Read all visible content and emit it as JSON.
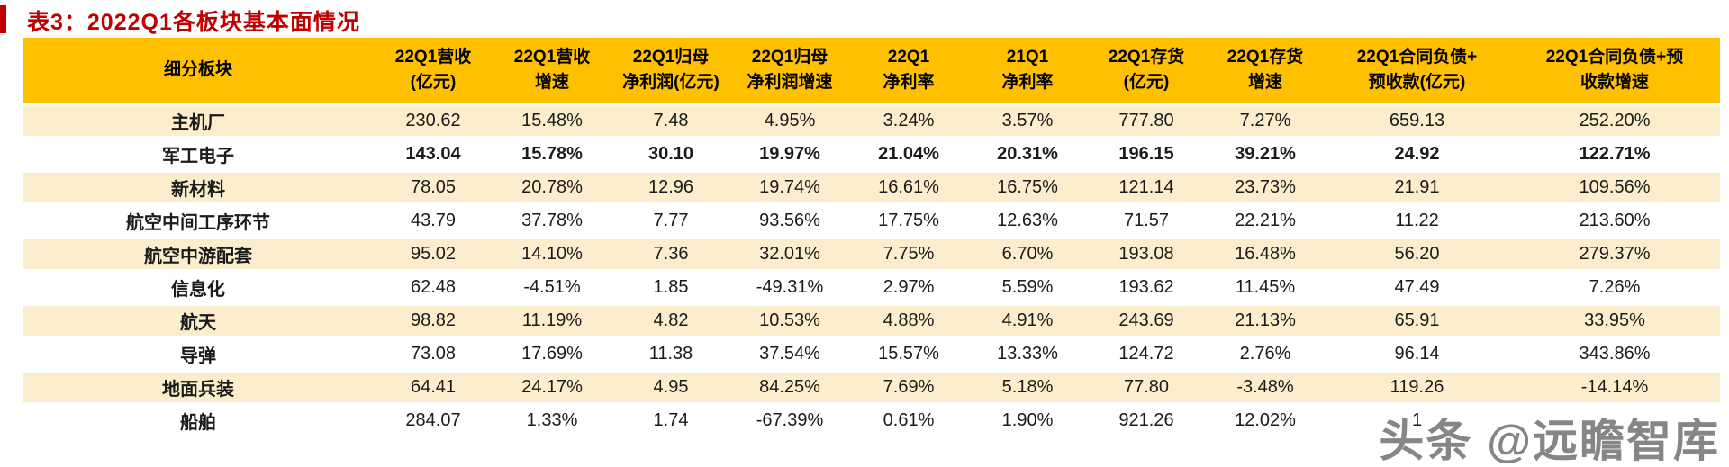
{
  "colors": {
    "title_red": "#C00000",
    "header_bg": "#FFC000",
    "stripe_bg": "#FCEDCC",
    "watermark_gray": "#868686"
  },
  "watermark": {
    "text": "头条 @远瞻智库"
  },
  "chart_data": {
    "type": "table",
    "title": "表3：2022Q1各板块基本面情况",
    "columns": [
      "细分板块",
      "22Q1营收(亿元)",
      "22Q1营收增速",
      "22Q1归母净利润(亿元)",
      "22Q1归母净利润增速",
      "22Q1净利率",
      "21Q1净利率",
      "22Q1存货(亿元)",
      "22Q1存货增速",
      "22Q1合同负债+预收款(亿元)",
      "22Q1合同负债+预收款增速"
    ],
    "column_lines": [
      [
        "细分板块"
      ],
      [
        "22Q1营收",
        "(亿元)"
      ],
      [
        "22Q1营收",
        "增速"
      ],
      [
        "22Q1归母",
        "净利润(亿元)"
      ],
      [
        "22Q1归母",
        "净利润增速"
      ],
      [
        "22Q1",
        "净利率"
      ],
      [
        "21Q1",
        "净利率"
      ],
      [
        "22Q1存货",
        "(亿元)"
      ],
      [
        "22Q1存货",
        "增速"
      ],
      [
        "22Q1合同负债+",
        "预收款(亿元)"
      ],
      [
        "22Q1合同负债+预",
        "收款增速"
      ]
    ],
    "rows": [
      {
        "name": "主机厂",
        "bold": false,
        "striped": true,
        "values": [
          "230.62",
          "15.48%",
          "7.48",
          "4.95%",
          "3.24%",
          "3.57%",
          "777.80",
          "7.27%",
          "659.13",
          "252.20%"
        ]
      },
      {
        "name": "军工电子",
        "bold": true,
        "striped": false,
        "values": [
          "143.04",
          "15.78%",
          "30.10",
          "19.97%",
          "21.04%",
          "20.31%",
          "196.15",
          "39.21%",
          "24.92",
          "122.71%"
        ]
      },
      {
        "name": "新材料",
        "bold": false,
        "striped": true,
        "values": [
          "78.05",
          "20.78%",
          "12.96",
          "19.74%",
          "16.61%",
          "16.75%",
          "121.14",
          "23.73%",
          "21.91",
          "109.56%"
        ]
      },
      {
        "name": "航空中间工序环节",
        "bold": false,
        "striped": false,
        "values": [
          "43.79",
          "37.78%",
          "7.77",
          "93.56%",
          "17.75%",
          "12.63%",
          "71.57",
          "22.21%",
          "11.22",
          "213.60%"
        ]
      },
      {
        "name": "航空中游配套",
        "bold": false,
        "striped": true,
        "values": [
          "95.02",
          "14.10%",
          "7.36",
          "32.01%",
          "7.75%",
          "6.70%",
          "193.08",
          "16.48%",
          "56.20",
          "279.37%"
        ]
      },
      {
        "name": "信息化",
        "bold": false,
        "striped": false,
        "values": [
          "62.48",
          "-4.51%",
          "1.85",
          "-49.31%",
          "2.97%",
          "5.59%",
          "193.62",
          "11.45%",
          "47.49",
          "7.26%"
        ]
      },
      {
        "name": "航天",
        "bold": false,
        "striped": true,
        "values": [
          "98.82",
          "11.19%",
          "4.82",
          "10.53%",
          "4.88%",
          "4.91%",
          "243.69",
          "21.13%",
          "65.91",
          "33.95%"
        ]
      },
      {
        "name": "导弹",
        "bold": false,
        "striped": false,
        "values": [
          "73.08",
          "17.69%",
          "11.38",
          "37.54%",
          "15.57%",
          "13.33%",
          "124.72",
          "2.76%",
          "96.14",
          "343.86%"
        ]
      },
      {
        "name": "地面兵装",
        "bold": false,
        "striped": true,
        "values": [
          "64.41",
          "24.17%",
          "4.95",
          "84.25%",
          "7.69%",
          "5.18%",
          "77.80",
          "-3.48%",
          "119.26",
          "-14.14%"
        ]
      },
      {
        "name": "船舶",
        "bold": false,
        "striped": false,
        "values": [
          "284.07",
          "1.33%",
          "1.74",
          "-67.39%",
          "0.61%",
          "1.90%",
          "921.26",
          "12.02%",
          "1",
          ""
        ]
      }
    ]
  }
}
